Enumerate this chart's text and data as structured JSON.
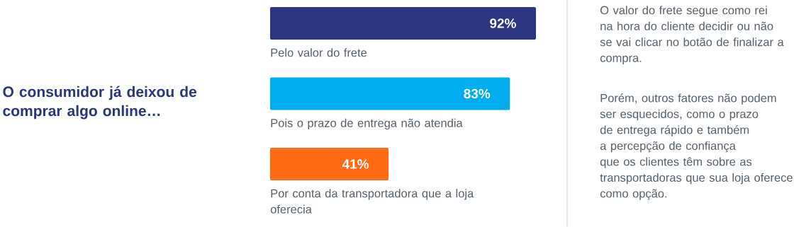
{
  "chart_data": {
    "type": "bar",
    "orientation": "horizontal",
    "title": "O consumidor já deixou de comprar algo online…",
    "categories": [
      "Pelo valor do frete",
      "Pois o prazo de entrega não atendia",
      "Por conta da transportadora que a loja oferecia"
    ],
    "values": [
      92,
      83,
      41
    ],
    "colors": [
      "#2b3580",
      "#00aeef",
      "#ff6a13"
    ],
    "value_labels": [
      "92%",
      "83%",
      "41%"
    ],
    "annotations": [
      "O valor do frete segue como rei na hora do cliente decidir ou não se vai clicar no botão de finalizar a compra.",
      "Porém, outros fatores não podem ser esquecidos, como o prazo de entrega rápido e também a percepção de confiança que os clientes têm sobre as transportadoras que sua loja oferece como opção."
    ]
  }
}
